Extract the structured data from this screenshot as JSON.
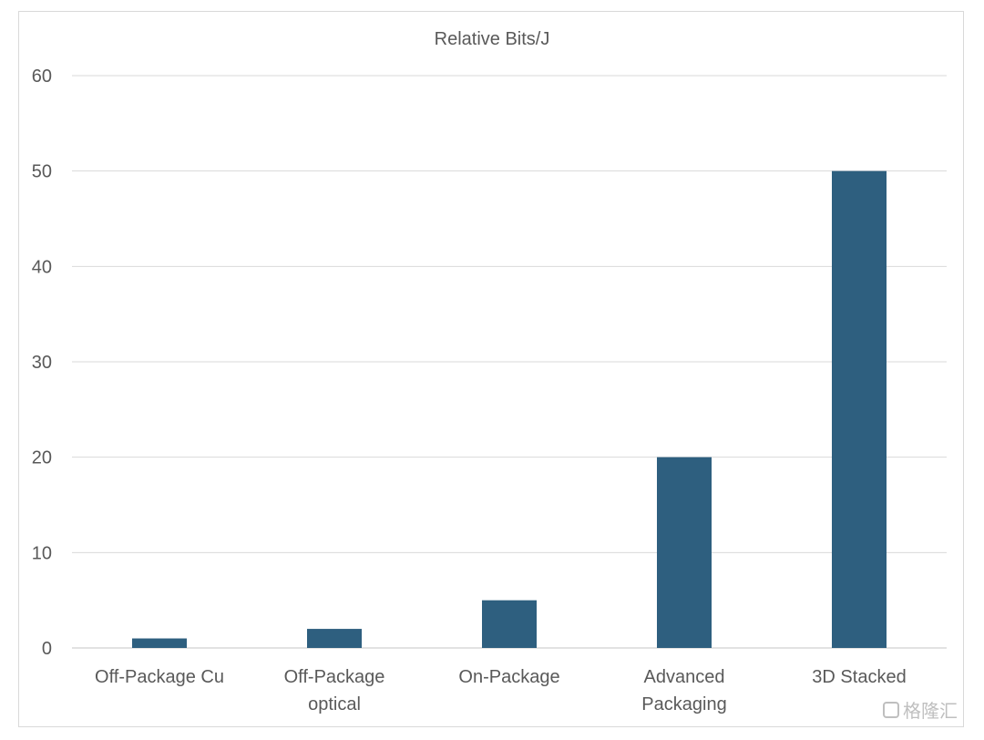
{
  "chart_data": {
    "type": "bar",
    "title": "Relative Bits/J",
    "xlabel": "",
    "ylabel": "",
    "categories": [
      [
        "Off-Package Cu"
      ],
      [
        "Off-Package",
        "optical"
      ],
      [
        "On-Package"
      ],
      [
        "Advanced",
        "Packaging"
      ],
      [
        "3D Stacked"
      ]
    ],
    "values": [
      1,
      2,
      5,
      20,
      50
    ],
    "ylim": [
      0,
      60
    ],
    "yticks": [
      0,
      10,
      20,
      30,
      40,
      50,
      60
    ],
    "grid": true,
    "legend": "none",
    "colors": {
      "bar": "#2e5f7f",
      "grid": "#d9d9d9",
      "text": "#595959"
    }
  },
  "watermark": {
    "text": "格隆汇",
    "icon": "brand-logo-icon"
  }
}
